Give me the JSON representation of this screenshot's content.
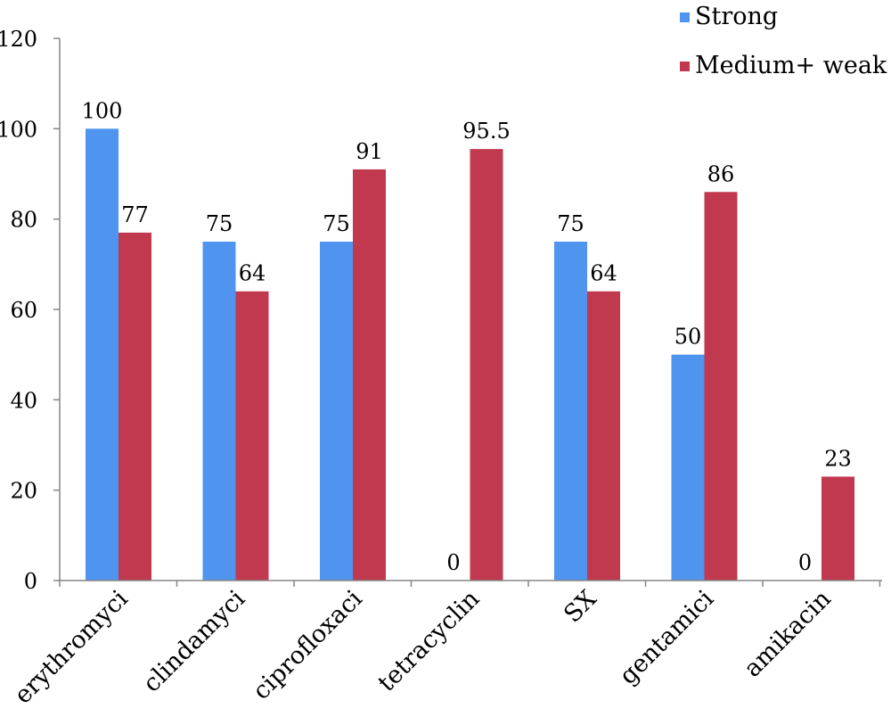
{
  "chart_data": {
    "type": "bar",
    "title": "",
    "xlabel": "",
    "ylabel": "",
    "ylim": [
      0,
      120
    ],
    "yticks": [
      0,
      20,
      40,
      60,
      80,
      100,
      120
    ],
    "grid": false,
    "legend_position": "top-right",
    "categories": [
      "erythromyci",
      "clindamyci",
      "ciprofloxaci",
      "tetracyclin",
      "SX",
      "gentamici",
      "amikacin"
    ],
    "series": [
      {
        "name": "Strong",
        "color": "#4F94EE",
        "values": [
          100,
          75,
          75,
          0,
          75,
          50,
          0
        ],
        "labels": [
          "100",
          "75",
          "75",
          "0",
          "75",
          "50",
          "0"
        ]
      },
      {
        "name": "Medium+ weak",
        "color": "#C0394E",
        "values": [
          77,
          64,
          91,
          95.5,
          64,
          86,
          23
        ],
        "labels": [
          "77",
          "64",
          "91",
          "95.5",
          "64",
          "86",
          "23"
        ]
      }
    ]
  }
}
